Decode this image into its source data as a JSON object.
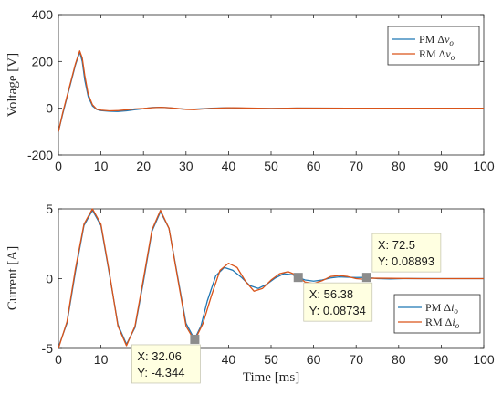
{
  "chart_data": [
    {
      "type": "line",
      "ylabel": "Voltage [V]",
      "xlim": [
        0,
        100
      ],
      "ylim": [
        -200,
        400
      ],
      "xticks": [
        "0",
        "10",
        "20",
        "30",
        "40",
        "50",
        "60",
        "70",
        "80",
        "90",
        "100"
      ],
      "yticks": [
        "-200",
        "0",
        "200",
        "400"
      ],
      "legend_position": "top-right",
      "grid": false,
      "series": [
        {
          "name": "PM Δv_o",
          "legend_main": "PM Δ",
          "legend_var": "v",
          "legend_sub": "o",
          "color": "#1f77b4",
          "points": [
            [
              0,
              -100
            ],
            [
              1,
              -25
            ],
            [
              2,
              45
            ],
            [
              3,
              115
            ],
            [
              4,
              185
            ],
            [
              5,
              240
            ],
            [
              5.6,
              200
            ],
            [
              6.2,
              120
            ],
            [
              7,
              50
            ],
            [
              8,
              10
            ],
            [
              9,
              -5
            ],
            [
              10,
              -10
            ],
            [
              12,
              -13
            ],
            [
              14,
              -14
            ],
            [
              16,
              -11
            ],
            [
              18,
              -6
            ],
            [
              20,
              -2
            ],
            [
              22,
              3
            ],
            [
              24,
              4
            ],
            [
              26,
              2
            ],
            [
              28,
              -2
            ],
            [
              30,
              -4
            ],
            [
              32,
              -4
            ],
            [
              34,
              -2
            ],
            [
              36,
              0
            ],
            [
              40,
              2
            ],
            [
              44,
              0
            ],
            [
              50,
              -1
            ],
            [
              56,
              0.5
            ],
            [
              70,
              0
            ],
            [
              100,
              0
            ]
          ]
        },
        {
          "name": "RM Δv_o",
          "legend_main": "RM Δ",
          "legend_var": "v",
          "legend_sub": "o",
          "color": "#d95319",
          "points": [
            [
              0,
              -100
            ],
            [
              1,
              -20
            ],
            [
              2,
              50
            ],
            [
              3,
              120
            ],
            [
              4,
              190
            ],
            [
              5,
              245
            ],
            [
              5.6,
              215
            ],
            [
              6.2,
              140
            ],
            [
              7,
              60
            ],
            [
              8,
              15
            ],
            [
              9,
              -4
            ],
            [
              10,
              -8
            ],
            [
              12,
              -11
            ],
            [
              14,
              -10
            ],
            [
              16,
              -7
            ],
            [
              18,
              -3
            ],
            [
              20,
              -1
            ],
            [
              22,
              2
            ],
            [
              24,
              4
            ],
            [
              26,
              2
            ],
            [
              28,
              -1
            ],
            [
              30,
              -5
            ],
            [
              32,
              -6
            ],
            [
              34,
              -3
            ],
            [
              36,
              -1
            ],
            [
              40,
              2
            ],
            [
              44,
              1
            ],
            [
              50,
              -1
            ],
            [
              56,
              0.5
            ],
            [
              70,
              0
            ],
            [
              100,
              0
            ]
          ]
        }
      ]
    },
    {
      "type": "line",
      "xlabel": "Time [ms]",
      "ylabel": "Current [A]",
      "xlim": [
        0,
        100
      ],
      "ylim": [
        -5,
        5
      ],
      "xticks": [
        "0",
        "10",
        "20",
        "30",
        "40",
        "50",
        "60",
        "70",
        "80",
        "90",
        "100"
      ],
      "yticks": [
        "-5",
        "0",
        "5"
      ],
      "legend_position": "bottom-right",
      "grid": false,
      "series": [
        {
          "name": "PM Δi_o",
          "legend_main": "PM Δ",
          "legend_var": "i",
          "legend_sub": "o",
          "color": "#1f77b4",
          "points": [
            [
              0,
              -4.9
            ],
            [
              2,
              -3.2
            ],
            [
              4,
              0.5
            ],
            [
              6,
              3.8
            ],
            [
              8,
              4.9
            ],
            [
              10,
              3.8
            ],
            [
              12,
              0.3
            ],
            [
              14,
              -3.3
            ],
            [
              16,
              -4.7
            ],
            [
              18,
              -3.5
            ],
            [
              20,
              -0.2
            ],
            [
              22,
              3.4
            ],
            [
              24,
              4.8
            ],
            [
              26,
              3.6
            ],
            [
              28,
              0.2
            ],
            [
              30,
              -3.2
            ],
            [
              32,
              -4.34
            ],
            [
              33.5,
              -3.4
            ],
            [
              35,
              -1.6
            ],
            [
              37,
              0.2
            ],
            [
              39,
              0.8
            ],
            [
              41,
              0.6
            ],
            [
              43,
              0.1
            ],
            [
              45,
              -0.5
            ],
            [
              47,
              -0.7
            ],
            [
              49,
              -0.4
            ],
            [
              51,
              0.05
            ],
            [
              53,
              0.35
            ],
            [
              55,
              0.28
            ],
            [
              56.38,
              0.087
            ],
            [
              58,
              -0.1
            ],
            [
              60,
              -0.18
            ],
            [
              62,
              -0.1
            ],
            [
              64,
              0.05
            ],
            [
              66,
              0.12
            ],
            [
              68,
              0.1
            ],
            [
              70,
              0.08
            ],
            [
              72.5,
              0.089
            ],
            [
              75,
              0
            ],
            [
              78,
              -0.02
            ],
            [
              82,
              0.01
            ],
            [
              90,
              0
            ],
            [
              100,
              0
            ]
          ]
        },
        {
          "name": "RM Δi_o",
          "legend_main": "RM Δ",
          "legend_var": "i",
          "legend_sub": "o",
          "color": "#d95319",
          "points": [
            [
              0,
              -5
            ],
            [
              2,
              -3.1
            ],
            [
              4,
              0.7
            ],
            [
              6,
              3.9
            ],
            [
              8,
              5
            ],
            [
              10,
              3.9
            ],
            [
              12,
              0.4
            ],
            [
              14,
              -3.4
            ],
            [
              16,
              -4.8
            ],
            [
              18,
              -3.4
            ],
            [
              20,
              0
            ],
            [
              22,
              3.5
            ],
            [
              24,
              4.9
            ],
            [
              26,
              3.6
            ],
            [
              28,
              0.1
            ],
            [
              30,
              -3.4
            ],
            [
              32,
              -4.45
            ],
            [
              34,
              -3.2
            ],
            [
              36,
              -1.2
            ],
            [
              38,
              0.6
            ],
            [
              40,
              1.1
            ],
            [
              42,
              0.8
            ],
            [
              44,
              -0.2
            ],
            [
              46,
              -0.9
            ],
            [
              48,
              -0.7
            ],
            [
              50,
              -0.1
            ],
            [
              52,
              0.35
            ],
            [
              54,
              0.5
            ],
            [
              56,
              0.25
            ],
            [
              58,
              -0.25
            ],
            [
              60,
              -0.35
            ],
            [
              62,
              -0.15
            ],
            [
              64,
              0.15
            ],
            [
              66,
              0.22
            ],
            [
              68,
              0.15
            ],
            [
              70,
              0
            ],
            [
              72,
              -0.05
            ],
            [
              74,
              0.03
            ],
            [
              78,
              0.02
            ],
            [
              85,
              0
            ],
            [
              100,
              0
            ]
          ]
        }
      ],
      "datatips": [
        {
          "x": 32.06,
          "y": -4.344,
          "xtext": "X: 32.06",
          "ytext": "Y: -4.344",
          "placement": "below-left"
        },
        {
          "x": 56.38,
          "y": 0.08734,
          "xtext": "X: 56.38",
          "ytext": "Y: 0.08734",
          "placement": "below-right"
        },
        {
          "x": 72.5,
          "y": 0.08893,
          "xtext": "X: 72.5",
          "ytext": "Y: 0.08893",
          "placement": "above-right"
        }
      ]
    }
  ]
}
